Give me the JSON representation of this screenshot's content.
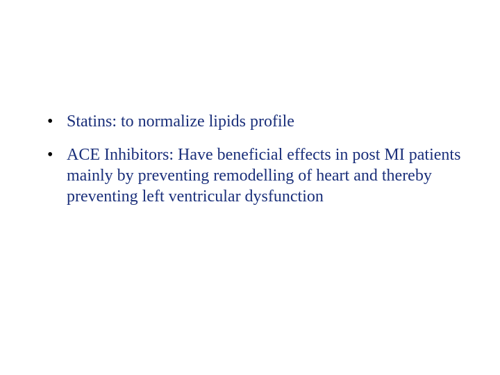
{
  "slide": {
    "background_color": "#ffffff",
    "text_color": "#1a2f7a",
    "bullet_color": "#000000",
    "font_family": "Times New Roman",
    "font_size_pt": 24,
    "line_height": 1.25,
    "bullets": [
      {
        "text": "Statins: to normalize lipids profile"
      },
      {
        "text": "ACE Inhibitors: Have beneficial effects in post MI patients mainly by preventing remodelling of heart and thereby preventing left ventricular dysfunction"
      }
    ]
  }
}
